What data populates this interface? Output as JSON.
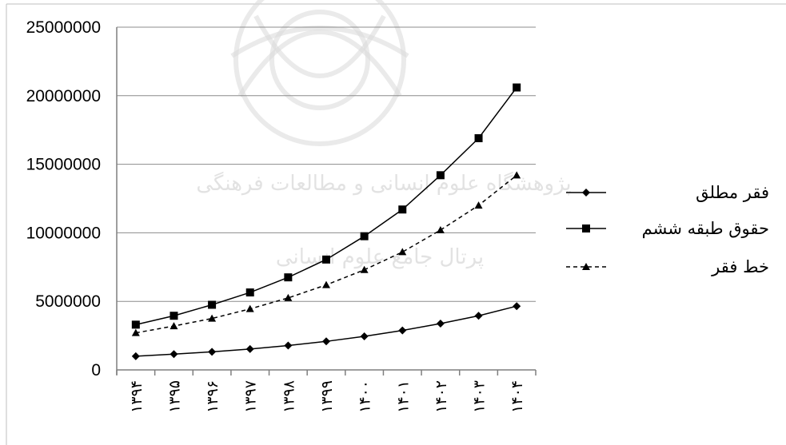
{
  "chart_data": {
    "type": "line",
    "categories": [
      "۱۳۹۴",
      "۱۳۹۵",
      "۱۳۹۶",
      "۱۳۹۷",
      "۱۳۹۸",
      "۱۳۹۹",
      "۱۴۰۰",
      "۱۴۰۱",
      "۱۴۰۲",
      "۱۴۰۳",
      "۱۴۰۴"
    ],
    "ylim": [
      0,
      25000000
    ],
    "yticks": [
      "25000000",
      "20000000",
      "15000000",
      "10000000",
      "5000000",
      "0"
    ],
    "grid": true,
    "legend_position": "right",
    "series": [
      {
        "name": "فقر مطلق",
        "marker": "diamond",
        "line_style": "solid",
        "values": [
          1000000,
          1150000,
          1320000,
          1520000,
          1780000,
          2080000,
          2450000,
          2880000,
          3380000,
          3950000,
          4650000
        ]
      },
      {
        "name": "حقوق طبقه ششم",
        "marker": "square",
        "line_style": "solid",
        "values": [
          3300000,
          3950000,
          4750000,
          5650000,
          6750000,
          8050000,
          9750000,
          11700000,
          14200000,
          16900000,
          20600000
        ]
      },
      {
        "name": "خط فقر",
        "marker": "triangle",
        "line_style": "dashed",
        "values": [
          2700000,
          3200000,
          3750000,
          4450000,
          5250000,
          6200000,
          7300000,
          8600000,
          10200000,
          12000000,
          14200000
        ]
      }
    ]
  },
  "watermark": {
    "line1": "پژوهشگاه علوم انسانی و مطالعات فرهنگی",
    "line2": "پرتال جامع علوم انسانی"
  },
  "colors": {
    "ink": "#000000",
    "grid": "#8c8c8c",
    "frame": "#bfbfbf",
    "watermark": "#d9d9d9"
  }
}
